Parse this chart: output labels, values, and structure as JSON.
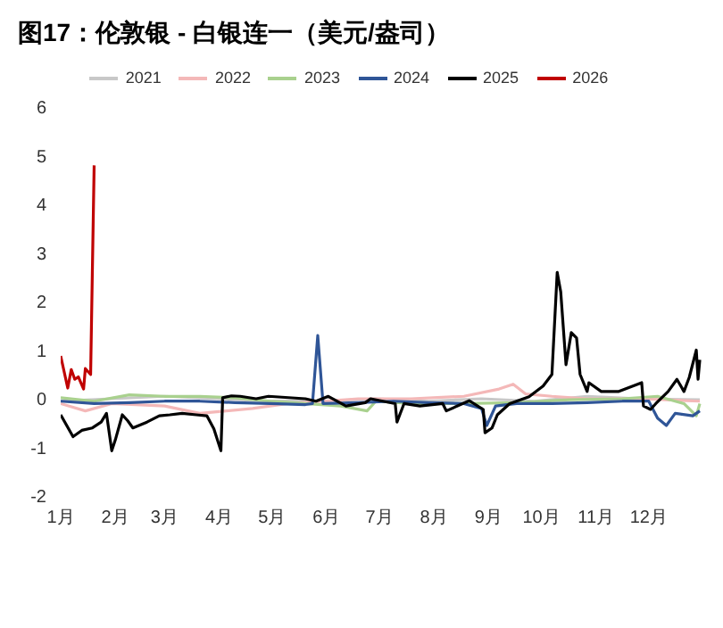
{
  "chart_data": {
    "type": "line",
    "title": "图17：伦敦银 - 白银连一（美元/盎司）",
    "xlim": [
      "--01-01",
      "--12-31"
    ],
    "xticks": [
      {
        "value": "--01-01",
        "label": "1月"
      },
      {
        "value": "--02-01",
        "label": "2月"
      },
      {
        "value": "--03-01",
        "label": "3月"
      },
      {
        "value": "--04-01",
        "label": "4月"
      },
      {
        "value": "--05-01",
        "label": "5月"
      },
      {
        "value": "--06-01",
        "label": "6月"
      },
      {
        "value": "--07-01",
        "label": "7月"
      },
      {
        "value": "--08-01",
        "label": "8月"
      },
      {
        "value": "--09-01",
        "label": "9月"
      },
      {
        "value": "--10-01",
        "label": "10月"
      },
      {
        "value": "--11-01",
        "label": "11月"
      },
      {
        "value": "--12-01",
        "label": "12月"
      }
    ],
    "ylim": [
      -2,
      6
    ],
    "yticks": [
      -2,
      -1,
      0,
      1,
      2,
      3,
      4,
      5,
      6
    ],
    "grid": false,
    "legend": "top",
    "marker": "none",
    "line_style": "solid",
    "series": [
      {
        "name": "2021",
        "color": "#c8c8c8",
        "x": [
          "--01-01",
          "--01-30",
          "--03-01",
          "--03-31",
          "--04-30",
          "--05-30",
          "--06-29",
          "--07-29",
          "--08-28",
          "--09-27",
          "--10-27",
          "--11-26",
          "--12-30"
        ],
        "values": [
          -0.05,
          0.0,
          0.05,
          0.0,
          -0.05,
          -0.05,
          0.0,
          -0.05,
          0.0,
          -0.05,
          0.05,
          0.0,
          -0.02
        ]
      },
      {
        "name": "2022",
        "color": "#f4b8b8",
        "x": [
          "--01-01",
          "--01-15",
          "--01-30",
          "--03-01",
          "--03-21",
          "--04-05",
          "--04-20",
          "--05-10",
          "--05-30",
          "--06-19",
          "--07-19",
          "--08-18",
          "--09-07",
          "--09-15",
          "--09-22",
          "--10-07",
          "--10-27",
          "--11-26",
          "--12-30"
        ],
        "values": [
          -0.1,
          -0.25,
          -0.1,
          -0.15,
          -0.3,
          -0.25,
          -0.2,
          -0.1,
          -0.05,
          0.0,
          0.0,
          0.05,
          0.2,
          0.3,
          0.1,
          0.05,
          0.0,
          0.0,
          -0.05
        ]
      },
      {
        "name": "2023",
        "color": "#a9d18e",
        "x": [
          "--01-01",
          "--01-20",
          "--02-09",
          "--03-01",
          "--03-21",
          "--04-10",
          "--04-30",
          "--05-20",
          "--06-09",
          "--06-24",
          "--06-29",
          "--07-19",
          "--08-18",
          "--09-17",
          "--10-17",
          "--11-16",
          "--12-06",
          "--12-21",
          "--12-28",
          "--12-30"
        ],
        "values": [
          0.02,
          -0.05,
          0.08,
          0.05,
          0.05,
          0.02,
          -0.05,
          -0.1,
          -0.15,
          -0.25,
          -0.05,
          -0.1,
          -0.1,
          -0.08,
          -0.02,
          0.0,
          0.05,
          -0.1,
          -0.35,
          -0.1
        ]
      },
      {
        "name": "2024",
        "color": "#2f5597",
        "x": [
          "--01-01",
          "--01-20",
          "--02-09",
          "--03-01",
          "--03-21",
          "--04-10",
          "--04-30",
          "--05-20",
          "--05-24",
          "--05-27",
          "--05-30",
          "--06-19",
          "--07-09",
          "--07-29",
          "--08-18",
          "--08-28",
          "--08-31",
          "--09-05",
          "--09-17",
          "--10-07",
          "--10-27",
          "--11-16",
          "--12-01",
          "--12-06",
          "--12-11",
          "--12-16",
          "--12-26",
          "--12-30"
        ],
        "values": [
          -0.05,
          -0.1,
          -0.08,
          -0.05,
          -0.05,
          -0.08,
          -0.1,
          -0.12,
          -0.1,
          1.3,
          -0.1,
          -0.08,
          -0.05,
          -0.08,
          -0.1,
          -0.2,
          -0.55,
          -0.15,
          -0.1,
          -0.1,
          -0.08,
          -0.05,
          -0.05,
          -0.4,
          -0.55,
          -0.3,
          -0.35,
          -0.25
        ]
      },
      {
        "name": "2025",
        "color": "#000000",
        "x": [
          "--01-01",
          "--01-08",
          "--01-13",
          "--01-19",
          "--01-24",
          "--01-27",
          "--01-30",
          "--02-01",
          "--02-05",
          "--02-08",
          "--02-11",
          "--02-19",
          "--02-26",
          "--03-04",
          "--03-11",
          "--03-19",
          "--03-25",
          "--03-29",
          "--04-02",
          "--04-03",
          "--04-08",
          "--04-13",
          "--04-22",
          "--04-29",
          "--05-20",
          "--05-26",
          "--06-02",
          "--06-12",
          "--06-23",
          "--06-26",
          "--07-10",
          "--07-11",
          "--07-15",
          "--07-24",
          "--08-06",
          "--08-08",
          "--08-21",
          "--08-29",
          "--08-30",
          "--09-03",
          "--09-06",
          "--09-13",
          "--09-24",
          "--10-02",
          "--10-07",
          "--10-10",
          "--10-12",
          "--10-15",
          "--10-18",
          "--10-21",
          "--10-23",
          "--10-27",
          "--10-28",
          "--11-04",
          "--11-14",
          "--11-22",
          "--11-27",
          "--11-28",
          "--12-02",
          "--12-05",
          "--12-12",
          "--12-17",
          "--12-21",
          "--12-24",
          "--12-28",
          "--12-29",
          "--12-30"
        ],
        "values": [
          -0.33,
          -0.78,
          -0.65,
          -0.6,
          -0.48,
          -0.3,
          -1.07,
          -0.85,
          -0.33,
          -0.45,
          -0.6,
          -0.48,
          -0.35,
          -0.33,
          -0.3,
          -0.33,
          -0.35,
          -0.62,
          -1.07,
          0.02,
          0.06,
          0.05,
          0.0,
          0.05,
          0.0,
          -0.05,
          0.05,
          -0.15,
          -0.08,
          0.0,
          -0.1,
          -0.48,
          -0.1,
          -0.15,
          -0.1,
          -0.25,
          -0.04,
          -0.22,
          -0.7,
          -0.6,
          -0.33,
          -0.1,
          0.04,
          0.26,
          0.5,
          2.6,
          2.2,
          0.7,
          1.36,
          1.25,
          0.5,
          0.15,
          0.33,
          0.15,
          0.15,
          0.26,
          0.33,
          -0.15,
          -0.22,
          -0.1,
          0.15,
          0.4,
          0.15,
          0.44,
          1.0,
          0.4,
          0.8
        ]
      },
      {
        "name": "2026",
        "color": "#c00000",
        "x": [
          "--01-01",
          "--01-05",
          "--01-07",
          "--01-09",
          "--01-11",
          "--01-14",
          "--01-15",
          "--01-18",
          "--01-20"
        ],
        "values": [
          0.88,
          0.22,
          0.6,
          0.4,
          0.45,
          0.2,
          0.62,
          0.5,
          4.8
        ]
      }
    ]
  }
}
